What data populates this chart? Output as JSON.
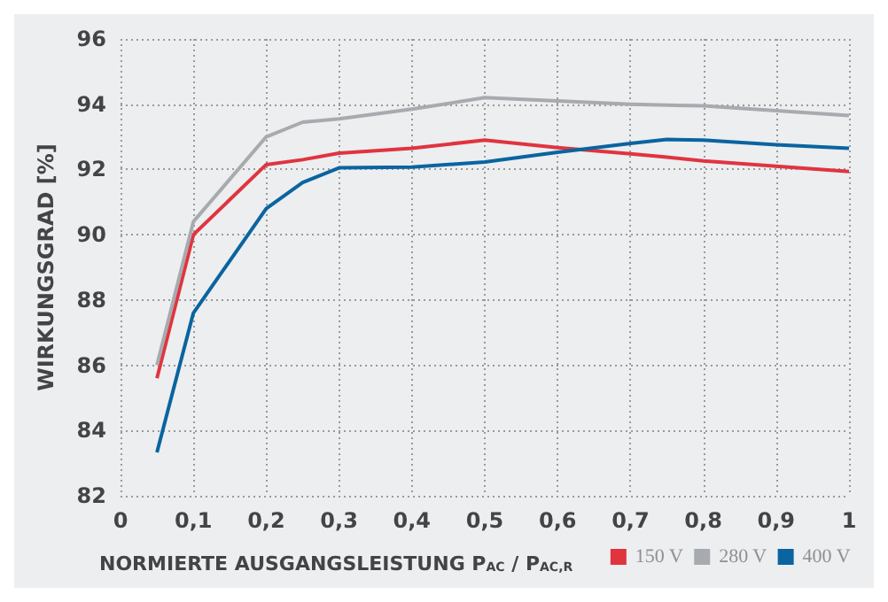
{
  "chart_data": {
    "type": "line",
    "xlabel": "NORMIERTE AUSGANGSLEISTUNG P$_{AC}$ / P$_{AC,R}$",
    "ylabel": "WIRKUNGSGRAD [%]",
    "x": [
      0.05,
      0.1,
      0.2,
      0.25,
      0.3,
      0.4,
      0.5,
      0.6,
      0.7,
      0.75,
      0.8,
      0.9,
      1
    ],
    "series": [
      {
        "name": "150 V",
        "color": "#e0343f",
        "values": [
          85.6,
          90.0,
          92.15,
          92.3,
          92.5,
          92.65,
          92.9,
          92.67,
          92.48,
          92.38,
          92.26,
          92.1,
          91.94
        ]
      },
      {
        "name": "280 V",
        "color": "#a7abaf",
        "values": [
          86.0,
          90.4,
          93.0,
          93.45,
          93.55,
          93.85,
          94.2,
          94.1,
          94.0,
          93.97,
          93.95,
          93.8,
          93.65
        ]
      },
      {
        "name": "400 V",
        "color": "#0a64a0",
        "values": [
          83.33,
          87.6,
          90.8,
          91.6,
          92.05,
          92.07,
          92.23,
          92.53,
          92.8,
          92.92,
          92.9,
          92.76,
          92.65
        ]
      }
    ],
    "xlim": [
      0,
      1
    ],
    "ylim": [
      82,
      96
    ],
    "xticks": [
      0,
      {
        "value": 0.1,
        "label": "0,1"
      },
      {
        "value": 0.2,
        "label": "0,2"
      },
      {
        "value": 0.3,
        "label": "0,3"
      },
      {
        "value": 0.4,
        "label": "0,4"
      },
      {
        "value": 0.5,
        "label": "0,5"
      },
      {
        "value": 0.6,
        "label": "0,6"
      },
      {
        "value": 0.7,
        "label": "0,7"
      },
      {
        "value": 0.8,
        "label": "0,8"
      },
      {
        "value": 0.9,
        "label": "0,9"
      },
      1
    ],
    "yticks": [
      82,
      84,
      86,
      88,
      90,
      92,
      94,
      96
    ],
    "grid": true,
    "legend": "bottom right",
    "marker": "none",
    "line_style": "solid"
  }
}
